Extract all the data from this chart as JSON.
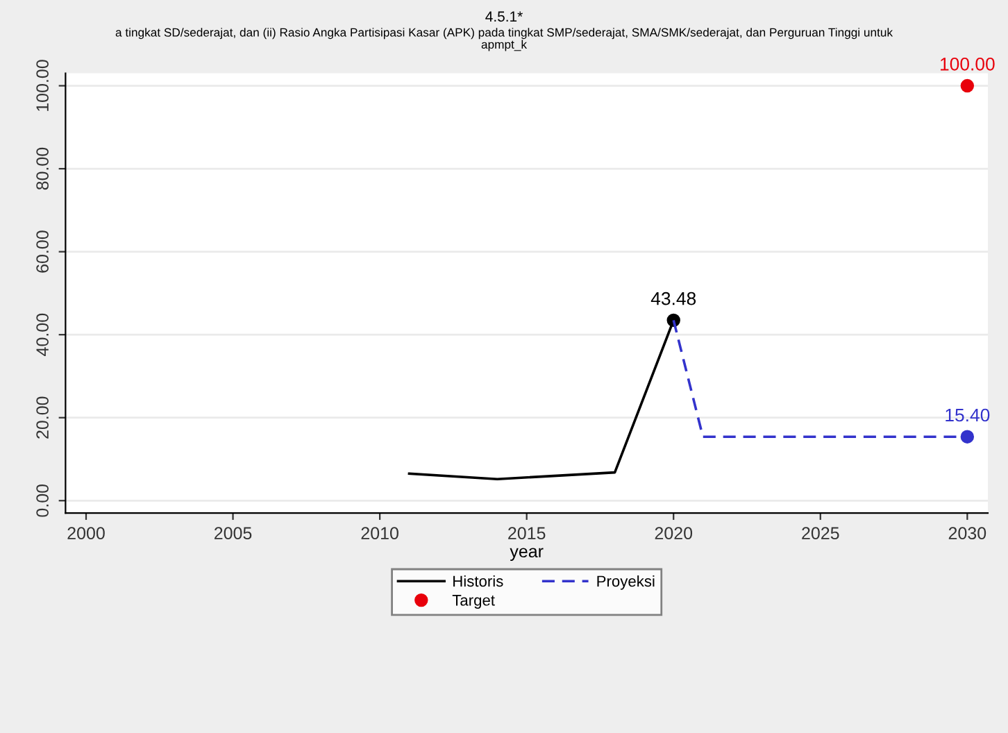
{
  "chart_data": {
    "type": "line",
    "title": "4.5.1*",
    "subtitle": "a tingkat SD/sederajat, dan (ii) Rasio Angka Partisipasi Kasar (APK) pada tingkat SMP/sederajat, SMA/SMK/sederajat, dan Perguruan Tinggi untuk\napmpt_k",
    "xlabel": "year",
    "series": [
      {
        "name": "Historis",
        "type": "line",
        "color": "#000000",
        "line_style": "solid",
        "x": [
          2011,
          2014,
          2018,
          2020
        ],
        "values": [
          6.5,
          5.2,
          6.8,
          43.48
        ],
        "value_labels": [
          null,
          null,
          null,
          "43.48"
        ]
      },
      {
        "name": "Proyeksi",
        "type": "line",
        "color": "#3333cc",
        "line_style": "dashed",
        "x": [
          2020,
          2021,
          2030
        ],
        "values": [
          43.48,
          15.4,
          15.4
        ],
        "value_labels": [
          null,
          null,
          "15.40"
        ]
      },
      {
        "name": "Target",
        "type": "scatter",
        "marker": "circle",
        "color": "#e8000b",
        "x": [
          2030
        ],
        "values": [
          100
        ],
        "value_labels": [
          "100.00"
        ]
      }
    ],
    "xlim": [
      1999.3,
      2030.7
    ],
    "xticks": [
      2000,
      2005,
      2010,
      2015,
      2020,
      2025,
      2030
    ],
    "ylim": [
      -3,
      103
    ],
    "yticks": [
      {
        "value": 0,
        "label": "0.00"
      },
      {
        "value": 20,
        "label": "20.00"
      },
      {
        "value": 40,
        "label": "40.00"
      },
      {
        "value": 60,
        "label": "60.00"
      },
      {
        "value": 80,
        "label": "80.00"
      },
      {
        "value": 100,
        "label": "100.00"
      }
    ],
    "grid": "y",
    "legend": "bottom"
  }
}
